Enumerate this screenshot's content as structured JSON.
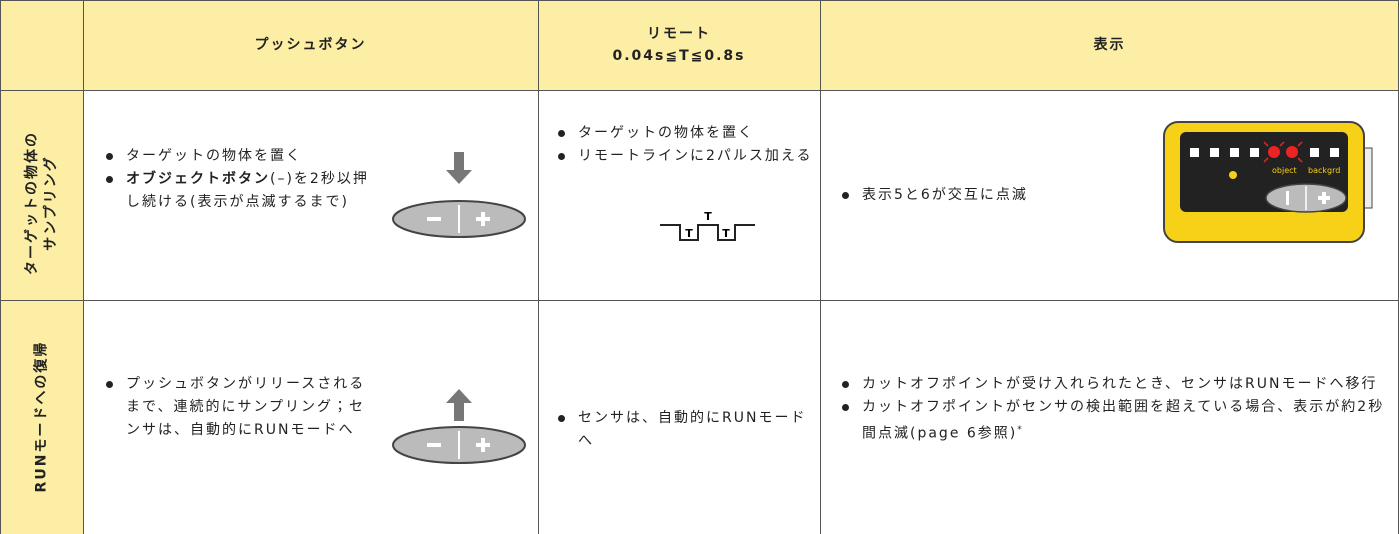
{
  "header": {
    "pushbutton": "プッシュボタン",
    "remote": {
      "title": "リモート",
      "condition": "0.04s≦T≦0.8s"
    },
    "display": "表示"
  },
  "rows": [
    {
      "label_lines": [
        "ターゲットの物体の",
        "サンプリング"
      ],
      "pushbutton": [
        {
          "text": "ターゲットの物体を置く"
        },
        {
          "bold": "オブジェクトボタン",
          "text": "(–)を2秒以押し続ける(表示が点滅するまで)"
        }
      ],
      "remote": {
        "bullets": [
          "ターゲットの物体を置く",
          "リモートラインに2パルス加える"
        ],
        "pulse_labels": [
          "T",
          "T",
          "T"
        ]
      },
      "display": {
        "bullets": [
          "表示5と6が交互に点滅"
        ],
        "device_labels": {
          "object": "object",
          "backgrd": "backgrd"
        }
      }
    },
    {
      "label_lines": [
        "RUNモードへの復帰"
      ],
      "pushbutton": [
        {
          "text": "プッシュボタンがリリースされるまで、連続的にサンプリング；センサは、自動的にRUNモードへ"
        }
      ],
      "remote": {
        "bullets": [
          "センサは、自動的にRUNモードへ"
        ]
      },
      "display": {
        "bullets": [
          "カットオフポイントが受け入れられたとき、センサはRUNモードへ移行",
          "カットオフポイントがセンサの検出範囲を超えている場合、表示が約2秒間点滅(page 6参照)"
        ],
        "note_mark": "*"
      }
    }
  ]
}
